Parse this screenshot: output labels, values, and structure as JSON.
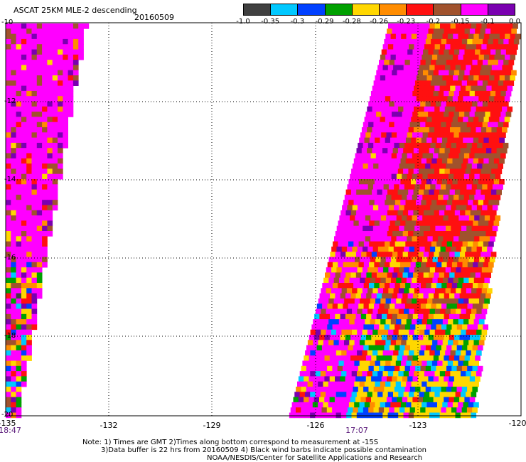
{
  "header": {
    "title": "ASCAT 25KM MLE-2 descending",
    "date": "20160509"
  },
  "colorbar": {
    "colors": [
      "#404040",
      "#00c8ff",
      "#0040ff",
      "#00a000",
      "#ffd700",
      "#ff8c00",
      "#ff1010",
      "#a0522d",
      "#ff00ff",
      "#7a00b0"
    ],
    "labels": [
      "-1.0",
      "-0.35",
      "-0.3",
      "-0.29",
      "-0.28",
      "-0.26",
      "-0.23",
      "-0.2",
      "-0.15",
      "-0.1",
      "0.0"
    ]
  },
  "axes": {
    "x_ticks": [
      "-135",
      "-132",
      "-129",
      "-126",
      "-123",
      "-120"
    ],
    "y_ticks": [
      "-10",
      "-12",
      "-14",
      "-16",
      "-18",
      "-20"
    ],
    "time_labels": [
      "18:47",
      "17:07"
    ]
  },
  "notes": {
    "line1": "Note: 1) Times are GMT 2)Times along bottom correspond to measurement at -15S",
    "line2": "3)Data buffer is 22 hrs from 20160509 4) Black wind barbs indicate possible contamination",
    "line3": "NOAA/NESDIS/Center for Satellite Applications and Research"
  },
  "map_data": {
    "lon_range": [
      -135,
      -120
    ],
    "lat_range": [
      -20,
      -10
    ],
    "swaths": [
      "west swath near 135W",
      "east swath 127W to 121W"
    ]
  }
}
